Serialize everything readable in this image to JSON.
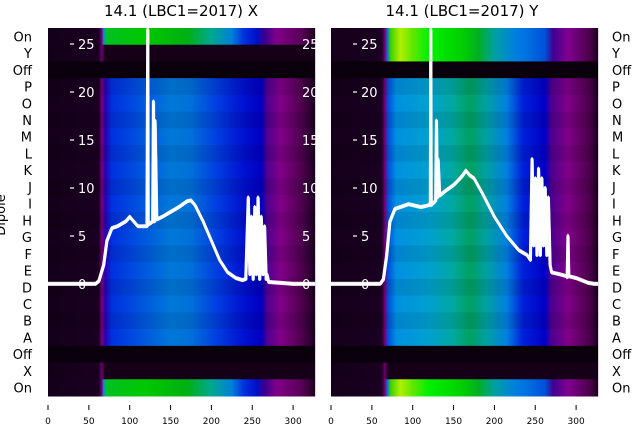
{
  "chart_data": [
    {
      "type": "heatmap",
      "title": "14.1 (LBC1=2017) X",
      "ylabel": "Dipole",
      "row_labels": [
        "On",
        "Y",
        "Off",
        "P",
        "O",
        "N",
        "M",
        "L",
        "K",
        "J",
        "I",
        "H",
        "G",
        "F",
        "E",
        "D",
        "C",
        "B",
        "A",
        "Off",
        "X",
        "On"
      ],
      "row_band": [
        "green",
        "dark",
        "black",
        "blue",
        "blue",
        "blue",
        "blue",
        "blue",
        "blue",
        "blue",
        "blue",
        "blue",
        "blue",
        "blue",
        "blue",
        "blue",
        "blue",
        "blue",
        "blue",
        "black",
        "dark",
        "green"
      ],
      "xlim": [
        0,
        327
      ],
      "x_ticks": [
        0,
        50,
        100,
        150,
        200,
        250,
        300
      ],
      "overlay_ylim": [
        -11.6,
        26.5
      ],
      "overlay_y_ticks": [
        0,
        5,
        10,
        15,
        20,
        25
      ],
      "band_colors": {
        "green": [
          [
            0,
            "#14001a"
          ],
          [
            62,
            "#1a0022"
          ],
          [
            66,
            "#7a007a"
          ],
          [
            68,
            "#0090e0"
          ],
          [
            72,
            "#00c020"
          ],
          [
            120,
            "#00c800"
          ],
          [
            170,
            "#00b010"
          ],
          [
            200,
            "#00a890"
          ],
          [
            225,
            "#0080d8"
          ],
          [
            240,
            "#0030e0"
          ],
          [
            255,
            "#0010c8"
          ],
          [
            265,
            "#3a0090"
          ],
          [
            280,
            "#800088"
          ],
          [
            310,
            "#5a0058"
          ],
          [
            327,
            "#1e0020"
          ]
        ],
        "blue": [
          [
            0,
            "#14001a"
          ],
          [
            62,
            "#1a0022"
          ],
          [
            66,
            "#7a007a"
          ],
          [
            70,
            "#2a00b0"
          ],
          [
            78,
            "#0030e0"
          ],
          [
            110,
            "#0050e0"
          ],
          [
            150,
            "#0078d8"
          ],
          [
            175,
            "#0070d8"
          ],
          [
            205,
            "#0040e0"
          ],
          [
            240,
            "#0010d0"
          ],
          [
            262,
            "#0000c0"
          ],
          [
            268,
            "#500090"
          ],
          [
            285,
            "#800088"
          ],
          [
            310,
            "#500050"
          ],
          [
            327,
            "#1a0020"
          ]
        ],
        "dark": [
          [
            0,
            "#120018"
          ],
          [
            62,
            "#1a0020"
          ],
          [
            66,
            "#6a006a"
          ],
          [
            70,
            "#150018"
          ],
          [
            327,
            "#150018"
          ]
        ],
        "black": [
          [
            0,
            "#0a000c"
          ],
          [
            327,
            "#0a000c"
          ]
        ]
      },
      "series": [
        {
          "name": "mean trace",
          "x": [
            0,
            58,
            62,
            68,
            72,
            78,
            85,
            95,
            100,
            110,
            118,
            121,
            122,
            122.5,
            123,
            125,
            128,
            129,
            130,
            131,
            133,
            140,
            150,
            160,
            170,
            175,
            180,
            190,
            200,
            210,
            220,
            230,
            238,
            242,
            245,
            247,
            249,
            251,
            253,
            255,
            257,
            259,
            261,
            263,
            265,
            267,
            268,
            270,
            300,
            327
          ],
          "y": [
            0,
            0,
            0.3,
            2,
            4.5,
            5.8,
            6,
            6.5,
            7,
            6,
            6,
            6,
            26.5,
            6.2,
            6.2,
            6.3,
            6.5,
            19,
            6.5,
            17,
            6.7,
            7,
            7.5,
            8,
            8.6,
            8.7,
            8.2,
            6.5,
            4.5,
            2.5,
            1.2,
            0.6,
            0.4,
            0.5,
            9,
            1,
            7,
            0.5,
            8,
            1,
            9,
            0.5,
            7,
            1,
            6,
            0.5,
            1,
            0.2,
            0,
            0
          ]
        }
      ]
    },
    {
      "type": "heatmap",
      "title": "14.1 (LBC1=2017) Y",
      "row_labels": [
        "On",
        "Y",
        "Off",
        "P",
        "O",
        "N",
        "M",
        "L",
        "K",
        "J",
        "I",
        "H",
        "G",
        "F",
        "E",
        "D",
        "C",
        "B",
        "A",
        "Off",
        "X",
        "On"
      ],
      "row_band": [
        "greenY",
        "greenY",
        "black",
        "cyan",
        "cyan",
        "cyan",
        "cyan",
        "cyan",
        "cyan",
        "cyan",
        "cyan",
        "cyan",
        "cyan",
        "cyan",
        "cyan",
        "cyan",
        "cyan",
        "cyan",
        "cyan",
        "black",
        "dark",
        "greenY"
      ],
      "xlim": [
        0,
        327
      ],
      "x_ticks": [
        0,
        50,
        100,
        150,
        200,
        250,
        300
      ],
      "overlay_ylim": [
        -11.6,
        26.5
      ],
      "overlay_y_ticks": [
        0,
        5,
        10,
        15,
        20,
        25
      ],
      "band_colors": {
        "greenY": [
          [
            0,
            "#14001a"
          ],
          [
            62,
            "#1a0022"
          ],
          [
            66,
            "#7a007a"
          ],
          [
            69,
            "#0070e0"
          ],
          [
            73,
            "#40d000"
          ],
          [
            85,
            "#b0f000"
          ],
          [
            100,
            "#60e800"
          ],
          [
            120,
            "#00f000"
          ],
          [
            160,
            "#00d000"
          ],
          [
            180,
            "#00b020"
          ],
          [
            200,
            "#00a0a0"
          ],
          [
            225,
            "#0080e0"
          ],
          [
            240,
            "#0070e0"
          ],
          [
            262,
            "#0050d8"
          ],
          [
            272,
            "#400090"
          ],
          [
            290,
            "#800090"
          ],
          [
            315,
            "#500050"
          ],
          [
            327,
            "#1e0020"
          ]
        ],
        "cyan": [
          [
            0,
            "#14001a"
          ],
          [
            62,
            "#1a0022"
          ],
          [
            66,
            "#7a007a"
          ],
          [
            70,
            "#0050e0"
          ],
          [
            80,
            "#0090e0"
          ],
          [
            120,
            "#00a0d0"
          ],
          [
            150,
            "#00a8a0"
          ],
          [
            170,
            "#00a060"
          ],
          [
            190,
            "#00a0a0"
          ],
          [
            215,
            "#0080e0"
          ],
          [
            235,
            "#0020d8"
          ],
          [
            262,
            "#0000c8"
          ],
          [
            270,
            "#500090"
          ],
          [
            290,
            "#800088"
          ],
          [
            315,
            "#500050"
          ],
          [
            327,
            "#1a0020"
          ]
        ],
        "dark": [
          [
            0,
            "#120018"
          ],
          [
            62,
            "#1a0020"
          ],
          [
            66,
            "#6a006a"
          ],
          [
            70,
            "#150018"
          ],
          [
            327,
            "#150018"
          ]
        ],
        "black": [
          [
            0,
            "#0a000c"
          ],
          [
            327,
            "#0a000c"
          ]
        ]
      },
      "series": [
        {
          "name": "mean trace",
          "x": [
            0,
            60,
            64,
            68,
            72,
            78,
            85,
            95,
            110,
            120,
            121.5,
            122,
            122.5,
            123,
            125,
            128,
            129,
            130,
            131,
            133,
            140,
            150,
            160,
            165,
            170,
            175,
            185,
            200,
            215,
            230,
            240,
            244,
            246,
            248,
            250,
            252,
            254,
            256,
            258,
            260,
            262,
            264,
            266,
            268,
            270,
            280,
            288,
            289,
            290,
            291,
            300,
            315,
            322,
            327
          ],
          "y": [
            0,
            0,
            0.5,
            3,
            6.5,
            7.8,
            8,
            8.3,
            8,
            8.2,
            8.5,
            26.5,
            8.2,
            8.3,
            8.4,
            8.7,
            17,
            9,
            13,
            9.2,
            9.7,
            10.3,
            11.2,
            11.8,
            11.3,
            11,
            9.5,
            7,
            5,
            3.5,
            3,
            2.5,
            13,
            4,
            11,
            3,
            12,
            3,
            11,
            4,
            10,
            3,
            9,
            2,
            1.2,
            1,
            0.8,
            0.7,
            5,
            0.8,
            0.6,
            0.1,
            0,
            0
          ]
        }
      ]
    }
  ]
}
